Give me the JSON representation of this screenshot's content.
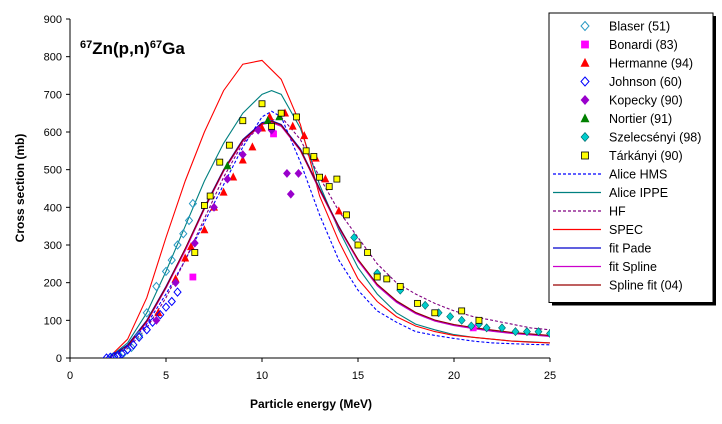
{
  "chart_data": {
    "type": "scatter",
    "title_parts": {
      "mass_a": "67",
      "reaction": "Zn(p,n)",
      "mass_b": "67",
      "product": "Ga"
    },
    "xlabel": "Particle energy (MeV)",
    "ylabel": "Cross section (mb)",
    "xlim": [
      0,
      25
    ],
    "ylim": [
      0,
      900
    ],
    "xticks": [
      0,
      5,
      10,
      15,
      20,
      25
    ],
    "yticks": [
      0,
      100,
      200,
      300,
      400,
      500,
      600,
      700,
      800,
      900
    ],
    "legend_position": "right",
    "series": [
      {
        "name": "Blaser (51)",
        "marker": "diamond-open",
        "color": "#2a9ac4",
        "x": [
          2.2,
          2.5,
          2.8,
          3.2,
          3.6,
          4.0,
          4.5,
          5.0,
          5.3,
          5.6,
          5.9,
          6.2,
          6.4
        ],
        "y": [
          2,
          6,
          14,
          28,
          60,
          120,
          190,
          230,
          260,
          300,
          330,
          365,
          410
        ]
      },
      {
        "name": "Bonardi (83)",
        "marker": "square",
        "color": "#ff00ff",
        "x": [
          6.4,
          10.6,
          21.0
        ],
        "y": [
          215,
          595,
          80
        ]
      },
      {
        "name": "Hermanne (94)",
        "marker": "triangle",
        "color": "#ff0000",
        "x": [
          4.6,
          5.5,
          6.0,
          6.3,
          7.0,
          7.5,
          8.0,
          8.5,
          9.0,
          9.5,
          10.0,
          10.4,
          11.2,
          11.6,
          12.2,
          12.8,
          13.3,
          14.0
        ],
        "y": [
          120,
          210,
          265,
          295,
          340,
          400,
          440,
          480,
          525,
          560,
          610,
          640,
          650,
          615,
          590,
          530,
          475,
          390
        ]
      },
      {
        "name": "Johnson (60)",
        "marker": "diamond-open",
        "color": "#0000ff",
        "x": [
          1.9,
          2.1,
          2.3,
          2.5,
          2.7,
          3.0,
          3.3,
          3.6,
          4.0,
          4.3,
          4.7,
          5.0,
          5.3,
          5.6
        ],
        "y": [
          0,
          2,
          4,
          7,
          11,
          22,
          35,
          55,
          75,
          95,
          115,
          135,
          150,
          175
        ]
      },
      {
        "name": "Kopecky (90)",
        "marker": "diamond",
        "color": "#9900cc",
        "x": [
          4.5,
          5.5,
          6.5,
          7.5,
          8.2,
          9.0,
          9.8,
          10.5,
          11.3,
          11.5,
          11.9
        ],
        "y": [
          100,
          200,
          305,
          400,
          475,
          540,
          605,
          605,
          490,
          435,
          490
        ]
      },
      {
        "name": "Nortier (91)",
        "marker": "triangle",
        "color": "#008000",
        "x": [
          8.2,
          10.3,
          10.9
        ],
        "y": [
          510,
          630,
          640
        ]
      },
      {
        "name": "Szelecsényi (98)",
        "marker": "diamond",
        "color": "#00cccc",
        "x": [
          14.8,
          16.0,
          17.2,
          18.5,
          19.2,
          19.8,
          20.4,
          20.9,
          21.3,
          21.7,
          22.5,
          23.2,
          23.8,
          24.4,
          25.0
        ],
        "y": [
          320,
          225,
          180,
          140,
          120,
          110,
          100,
          85,
          90,
          80,
          80,
          70,
          70,
          70,
          65
        ]
      },
      {
        "name": "Tárkányi (90)",
        "marker": "square",
        "color": "#ffff00",
        "x": [
          6.5,
          7.0,
          7.3,
          7.8,
          8.3,
          9.0,
          10.0,
          10.5,
          11.0,
          11.8,
          12.3,
          12.7,
          13.0,
          13.5,
          13.9,
          14.4,
          15.0,
          15.5,
          16.0,
          16.5,
          17.2,
          18.1,
          19.0,
          20.4,
          21.3
        ],
        "y": [
          280,
          405,
          430,
          520,
          565,
          630,
          675,
          615,
          650,
          640,
          550,
          535,
          480,
          455,
          475,
          380,
          300,
          280,
          215,
          210,
          190,
          145,
          120,
          125,
          100
        ]
      }
    ],
    "curves": [
      {
        "name": "Alice HMS",
        "style": "dashed",
        "color": "#0000ff",
        "x": [
          2,
          3,
          4,
          5,
          6,
          7,
          8,
          9,
          10,
          10.5,
          11,
          12,
          13,
          14,
          15,
          16,
          17,
          18,
          19,
          20,
          21,
          22,
          23,
          24,
          25
        ],
        "y": [
          0,
          30,
          90,
          170,
          260,
          360,
          460,
          560,
          640,
          655,
          640,
          520,
          380,
          260,
          180,
          125,
          95,
          70,
          60,
          52,
          45,
          40,
          38,
          36,
          35
        ]
      },
      {
        "name": "Alice IPPE",
        "style": "solid",
        "color": "#008080",
        "x": [
          2,
          3,
          4,
          5,
          6,
          7,
          8,
          9,
          10,
          10.5,
          11,
          12,
          13,
          14,
          15,
          16,
          17,
          18,
          19,
          20,
          21,
          22,
          23,
          24,
          25
        ],
        "y": [
          0,
          40,
          120,
          230,
          350,
          470,
          570,
          650,
          700,
          710,
          700,
          610,
          460,
          340,
          240,
          170,
          120,
          90,
          75,
          62,
          55,
          50,
          45,
          43,
          40
        ]
      },
      {
        "name": "HF",
        "style": "dashed",
        "color": "#800080",
        "x": [
          2,
          3,
          4,
          5,
          6,
          7,
          8,
          9,
          10,
          11,
          12,
          13,
          14,
          15,
          16,
          17,
          18,
          19,
          20,
          21,
          22,
          23,
          24,
          25
        ],
        "y": [
          0,
          25,
          80,
          160,
          260,
          370,
          480,
          570,
          620,
          640,
          580,
          480,
          390,
          320,
          250,
          200,
          170,
          145,
          125,
          110,
          100,
          90,
          80,
          75
        ]
      },
      {
        "name": "SPEC",
        "style": "solid",
        "color": "#ff0000",
        "x": [
          2,
          3,
          4,
          5,
          6,
          7,
          8,
          9,
          10,
          11,
          12,
          13,
          14,
          15,
          16,
          17,
          18,
          19,
          20,
          21,
          22,
          23,
          24,
          25
        ],
        "y": [
          0,
          50,
          160,
          320,
          470,
          600,
          710,
          780,
          790,
          740,
          620,
          430,
          310,
          210,
          150,
          110,
          85,
          70,
          60,
          55,
          50,
          45,
          42,
          40
        ]
      },
      {
        "name": "fit Pade",
        "style": "solid",
        "color": "#0000cc",
        "x": [
          2,
          3,
          4,
          5,
          6,
          7,
          8,
          9,
          10,
          10.5,
          11,
          12,
          13,
          14,
          15,
          16,
          17,
          18,
          19,
          20,
          21,
          22,
          23,
          24,
          25
        ],
        "y": [
          0,
          35,
          100,
          190,
          290,
          400,
          500,
          580,
          625,
          630,
          620,
          555,
          450,
          350,
          260,
          195,
          150,
          120,
          100,
          88,
          80,
          72,
          66,
          62,
          58
        ]
      },
      {
        "name": "fit Spline",
        "style": "solid",
        "color": "#cc00cc",
        "x": [
          2,
          3,
          4,
          5,
          6,
          7,
          8,
          9,
          10,
          10.5,
          11,
          12,
          13,
          14,
          15,
          16,
          17,
          18,
          19,
          20,
          21,
          22,
          23,
          24,
          25
        ],
        "y": [
          0,
          30,
          95,
          185,
          285,
          395,
          495,
          575,
          620,
          625,
          615,
          550,
          445,
          345,
          258,
          192,
          148,
          118,
          98,
          86,
          78,
          71,
          65,
          61,
          57
        ]
      },
      {
        "name": "Spline fit (04)",
        "style": "solid",
        "color": "#990000",
        "x": [
          2,
          3,
          4,
          5,
          6,
          7,
          8,
          9,
          10,
          10.5,
          11,
          12,
          13,
          14,
          15,
          16,
          17,
          18,
          19,
          20,
          21,
          22,
          23,
          24,
          25
        ],
        "y": [
          0,
          32,
          98,
          188,
          290,
          398,
          498,
          578,
          622,
          628,
          618,
          552,
          448,
          348,
          262,
          196,
          152,
          121,
          101,
          89,
          81,
          74,
          68,
          64,
          60
        ]
      }
    ]
  }
}
